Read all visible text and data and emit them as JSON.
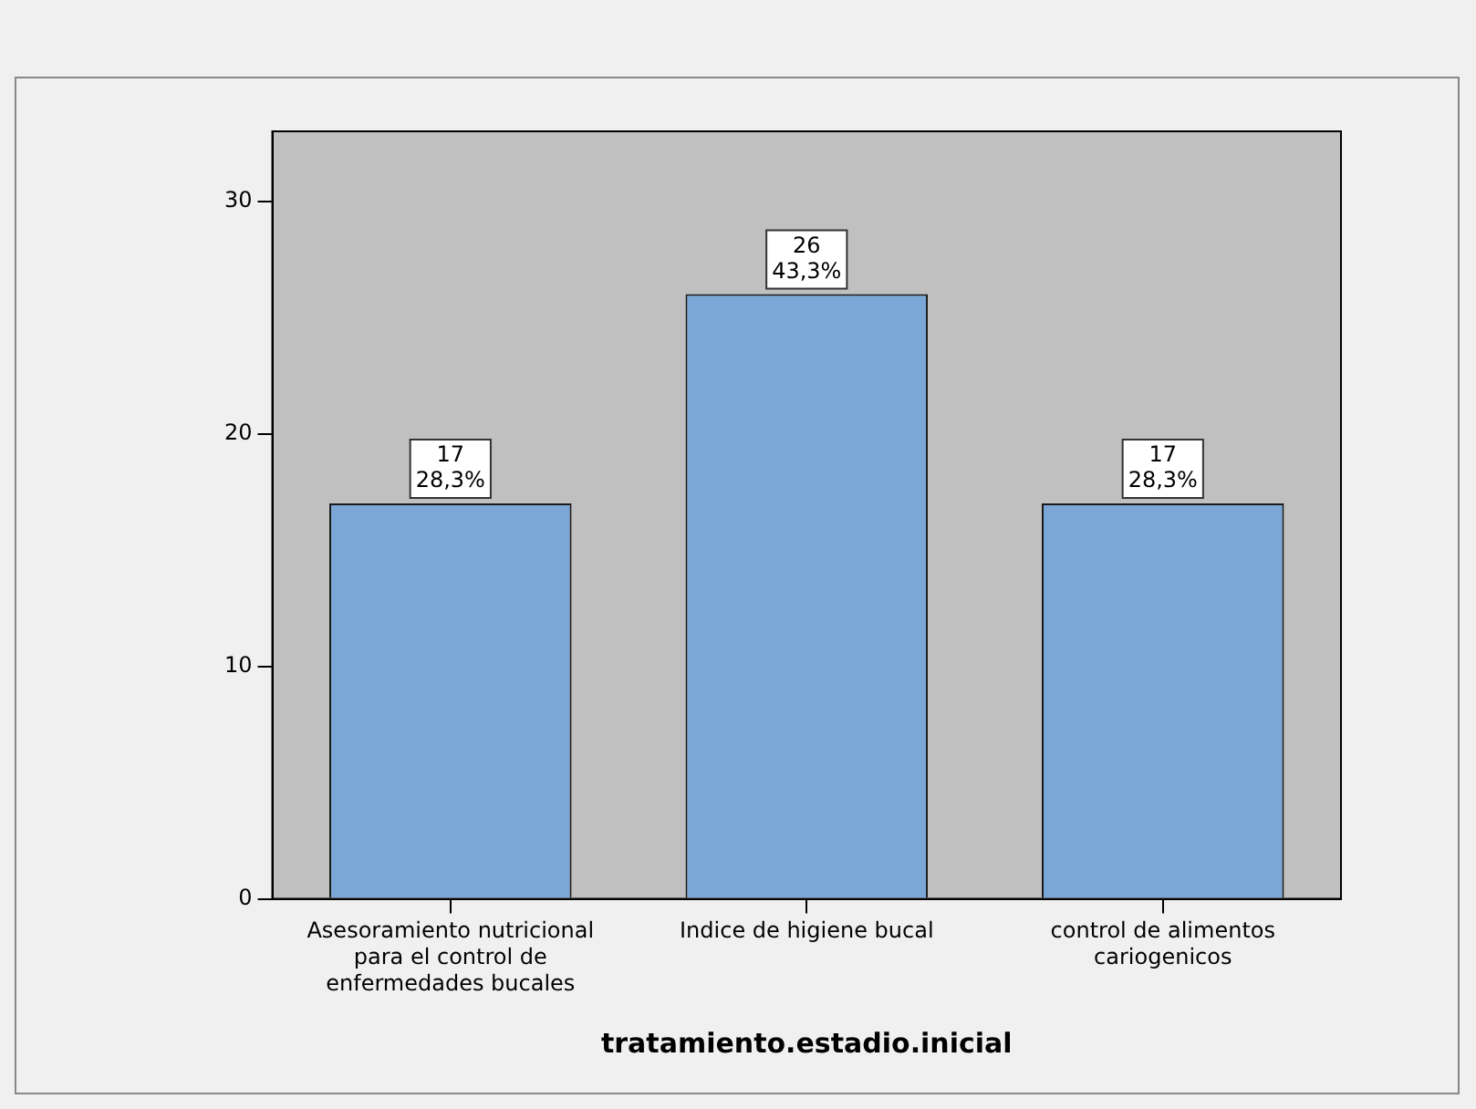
{
  "chart_data": {
    "type": "bar",
    "xlabel": "tratamiento.estadio.inicial",
    "categories": [
      "Asesoramiento nutricional para el control de enfermedades bucales",
      "Indice de higiene bucal",
      "control de alimentos cariogenicos"
    ],
    "values": [
      17,
      26,
      17
    ],
    "color": "#7ba7d6",
    "value_labels": [
      "17\n28,3%",
      "26\n43,3%",
      "17\n28,3%"
    ],
    "ylim": [
      0,
      33
    ],
    "yticks": [
      0,
      10,
      20,
      30
    ],
    "grid": false,
    "legend": false
  }
}
